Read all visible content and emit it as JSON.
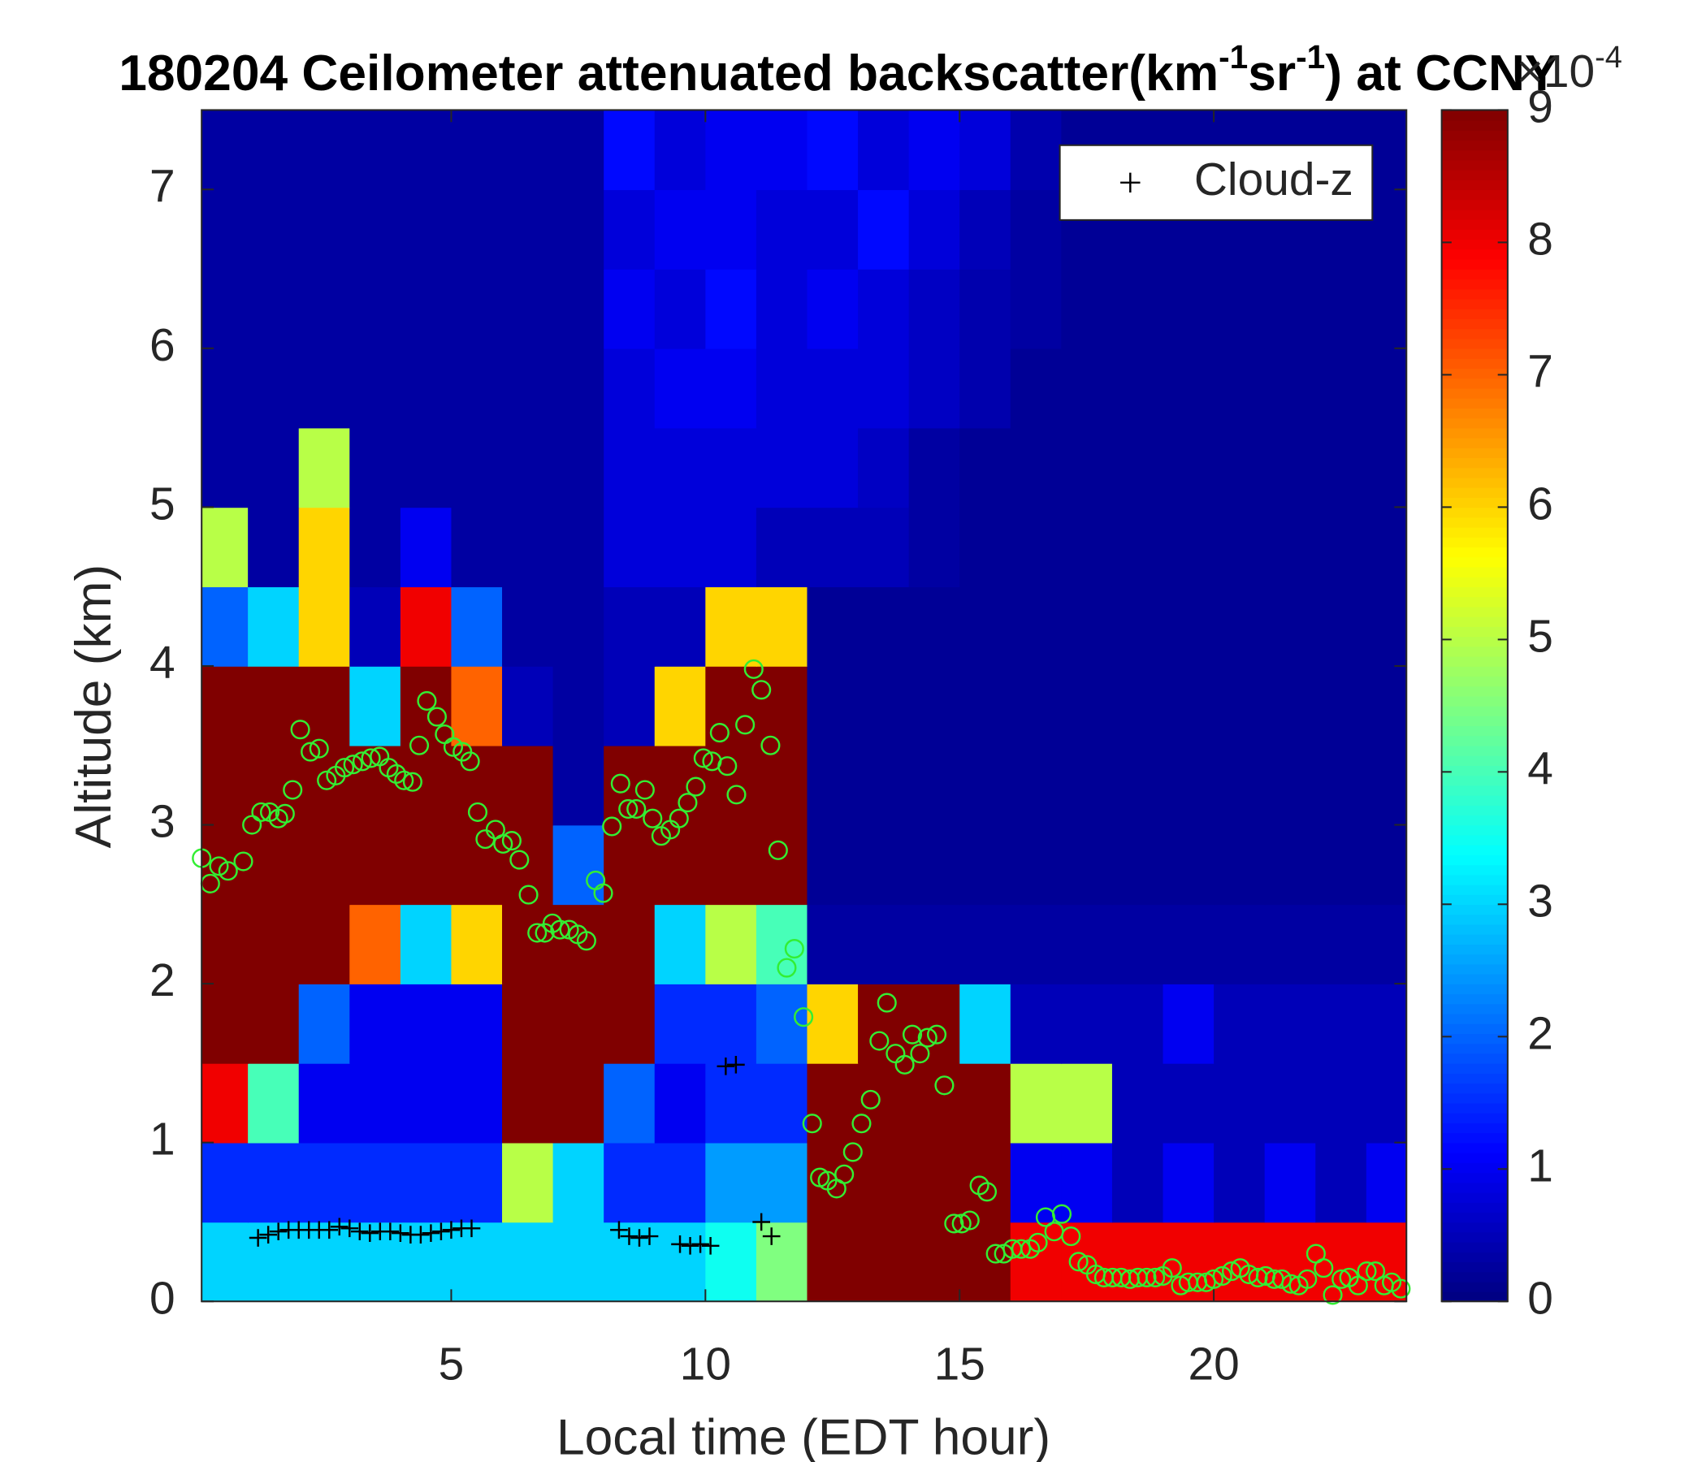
{
  "chart_data": {
    "type": "heatmap",
    "title_parts": [
      "180204 Ceilometer attenuated backscatter(km",
      "-1",
      "sr",
      "-1",
      ") at CCNY"
    ],
    "xlabel": "Local time (EDT hour)",
    "ylabel": "Altitude (km)",
    "xlim": [
      0.09,
      23.79
    ],
    "ylim": [
      0,
      7.5
    ],
    "xticks": [
      5,
      10,
      15,
      20
    ],
    "yticks": [
      0,
      1,
      2,
      3,
      4,
      5,
      6,
      7
    ],
    "colormap": "jet",
    "clim": [
      0,
      9
    ],
    "cticks": [
      0,
      1,
      2,
      3,
      4,
      5,
      6,
      7,
      8,
      9
    ],
    "colorbar_multiplier": "×10",
    "colorbar_exponent": "-4",
    "legend": "upper right",
    "x": [
      0.5,
      1.5,
      2.5,
      3.5,
      4.5,
      5.5,
      6.5,
      7.5,
      8.5,
      9.5,
      10.5,
      11.5,
      12.5,
      13.5,
      14.5,
      15.5,
      16.5,
      17.5,
      18.5,
      19.5,
      20.5,
      21.5,
      22.5,
      23.5
    ],
    "y": [
      0.25,
      0.75,
      1.25,
      1.75,
      2.25,
      2.75,
      3.25,
      3.75,
      4.25,
      4.75,
      5.25,
      5.75,
      6.25,
      6.75,
      7.25
    ],
    "z": [
      [
        3,
        3,
        3,
        3,
        3,
        3,
        3,
        3,
        3,
        3,
        3.5,
        4.5,
        9,
        9,
        9,
        9,
        8,
        8,
        8,
        8,
        8,
        8,
        8,
        8
      ],
      [
        1.5,
        1.5,
        1.5,
        1.5,
        1.5,
        1.5,
        5,
        3,
        1.5,
        1.5,
        2.5,
        2.5,
        9,
        9,
        9,
        9,
        1,
        1,
        0.5,
        1,
        0.5,
        1,
        0.5,
        1
      ],
      [
        8,
        4,
        1,
        1,
        1,
        1,
        9,
        9,
        2,
        1,
        1.5,
        1.5,
        9,
        9,
        9,
        9,
        5,
        5,
        0.5,
        0.5,
        0.5,
        0.5,
        0.5,
        0.5
      ],
      [
        9,
        9,
        2,
        1,
        1,
        1,
        9,
        9,
        9,
        1.5,
        1.5,
        2,
        6,
        9,
        9,
        3,
        0.5,
        0.5,
        0.5,
        1,
        0.5,
        0.5,
        0.5,
        0.5
      ],
      [
        9,
        9,
        9,
        7,
        3,
        6,
        9,
        9,
        9,
        3,
        5,
        4,
        0.3,
        0.3,
        0.3,
        0.3,
        0.3,
        0.3,
        0.3,
        0.3,
        0.3,
        0.3,
        0.3,
        0.3
      ],
      [
        9,
        9,
        9,
        9,
        9,
        9,
        9,
        2,
        9,
        9,
        9,
        9,
        0.2,
        0.2,
        0.2,
        0.2,
        0.2,
        0.2,
        0.2,
        0.2,
        0.2,
        0.2,
        0.2,
        0.2
      ],
      [
        9,
        9,
        9,
        9,
        9,
        9,
        9,
        0.3,
        9,
        9,
        9,
        9,
        0.2,
        0.2,
        0.2,
        0.2,
        0.2,
        0.2,
        0.2,
        0.2,
        0.2,
        0.2,
        0.2,
        0.2
      ],
      [
        9,
        9,
        9,
        3,
        9,
        7,
        0.5,
        0.3,
        0.5,
        6,
        9,
        9,
        0.2,
        0.2,
        0.2,
        0.2,
        0.2,
        0.2,
        0.2,
        0.2,
        0.2,
        0.2,
        0.2,
        0.2
      ],
      [
        2,
        3,
        6,
        0.5,
        8,
        2,
        0.3,
        0.3,
        0.5,
        0.5,
        6,
        6,
        0.2,
        0.2,
        0.2,
        0.2,
        0.2,
        0.2,
        0.2,
        0.2,
        0.2,
        0.2,
        0.2,
        0.2
      ],
      [
        5,
        0.3,
        6,
        0.3,
        1,
        0.3,
        0.3,
        0.3,
        0.8,
        0.8,
        0.8,
        0.5,
        0.5,
        0.5,
        0.3,
        0.2,
        0.2,
        0.2,
        0.2,
        0.2,
        0.2,
        0.2,
        0.2,
        0.2
      ],
      [
        0.3,
        0.3,
        5,
        0.3,
        0.3,
        0.3,
        0.3,
        0.3,
        0.8,
        0.8,
        0.8,
        0.8,
        0.8,
        0.6,
        0.3,
        0.2,
        0.2,
        0.2,
        0.2,
        0.2,
        0.2,
        0.2,
        0.2,
        0.2
      ],
      [
        0.3,
        0.3,
        0.3,
        0.3,
        0.3,
        0.3,
        0.3,
        0.3,
        0.8,
        1,
        1,
        0.8,
        0.8,
        0.8,
        0.6,
        0.4,
        0.2,
        0.2,
        0.2,
        0.2,
        0.2,
        0.2,
        0.2,
        0.2
      ],
      [
        0.3,
        0.3,
        0.3,
        0.3,
        0.3,
        0.3,
        0.3,
        0.3,
        1,
        0.8,
        1.2,
        0.8,
        1,
        0.8,
        0.6,
        0.4,
        0.3,
        0.2,
        0.2,
        0.2,
        0.2,
        0.2,
        0.2,
        0.2
      ],
      [
        0.3,
        0.3,
        0.3,
        0.3,
        0.3,
        0.3,
        0.3,
        0.3,
        0.8,
        1,
        1,
        0.8,
        0.8,
        1.2,
        0.8,
        0.5,
        0.3,
        0.2,
        0.2,
        0.2,
        0.2,
        0.2,
        0.2,
        0.2
      ],
      [
        0.3,
        0.3,
        0.3,
        0.3,
        0.3,
        0.3,
        0.3,
        0.3,
        1.2,
        0.8,
        1,
        1,
        1.2,
        0.8,
        1,
        0.8,
        0.4,
        0.2,
        0.2,
        0.2,
        0.2,
        0.2,
        0.2,
        0.2
      ]
    ],
    "overlays": [
      {
        "type": "scatter",
        "marker": "circle",
        "color": "#33ee33",
        "x": [
          0.09,
          0.26,
          0.43,
          0.61,
          0.91,
          1.08,
          1.26,
          1.43,
          1.6,
          1.73,
          1.88,
          2.03,
          2.23,
          2.4,
          2.55,
          2.73,
          2.9,
          3.07,
          3.25,
          3.42,
          3.59,
          3.77,
          3.92,
          4.07,
          4.24,
          4.37,
          4.52,
          4.72,
          4.87,
          5.04,
          5.22,
          5.37,
          5.52,
          5.67,
          5.87,
          6.02,
          6.19,
          6.34,
          6.52,
          6.69,
          6.84,
          6.99,
          7.14,
          7.32,
          7.49,
          7.66,
          7.84,
          7.99,
          8.16,
          8.33,
          8.48,
          8.64,
          8.81,
          8.96,
          9.13,
          9.31,
          9.48,
          9.65,
          9.81,
          9.96,
          10.13,
          10.28,
          10.43,
          10.61,
          10.78,
          10.95,
          11.1,
          11.28,
          11.43,
          11.6,
          11.75,
          11.93,
          12.1,
          12.25,
          12.4,
          12.58,
          12.73,
          12.9,
          13.07,
          13.25,
          13.42,
          13.57,
          13.74,
          13.92,
          14.07,
          14.22,
          14.37,
          14.55,
          14.7,
          14.89,
          15.04,
          15.2,
          15.39,
          15.54,
          15.71,
          15.87,
          16.04,
          16.21,
          16.39,
          16.54,
          16.69,
          16.86,
          17.01,
          17.19,
          17.34,
          17.51,
          17.68,
          17.84,
          18.01,
          18.18,
          18.35,
          18.51,
          18.68,
          18.85,
          19.0,
          19.18,
          19.35,
          19.5,
          19.68,
          19.85,
          20.0,
          20.17,
          20.35,
          20.52,
          20.69,
          20.87,
          21.02,
          21.19,
          21.34,
          21.52,
          21.67,
          21.84,
          22.01,
          22.16,
          22.34,
          22.51,
          22.66,
          22.84,
          23.01,
          23.18,
          23.35,
          23.5,
          23.68
        ],
        "y": [
          2.79,
          2.63,
          2.74,
          2.71,
          2.77,
          3.0,
          3.08,
          3.08,
          3.04,
          3.07,
          3.22,
          3.6,
          3.46,
          3.48,
          3.28,
          3.31,
          3.36,
          3.38,
          3.4,
          3.42,
          3.43,
          3.36,
          3.32,
          3.28,
          3.27,
          3.5,
          3.78,
          3.68,
          3.57,
          3.49,
          3.46,
          3.4,
          3.08,
          2.91,
          2.97,
          2.88,
          2.9,
          2.78,
          2.56,
          2.32,
          2.32,
          2.38,
          2.34,
          2.34,
          2.31,
          2.27,
          2.65,
          2.57,
          2.99,
          3.26,
          3.1,
          3.1,
          3.22,
          3.04,
          2.93,
          2.97,
          3.04,
          3.14,
          3.24,
          3.42,
          3.4,
          3.58,
          3.37,
          3.19,
          3.63,
          3.98,
          3.85,
          3.5,
          2.84,
          2.1,
          2.22,
          1.79,
          1.12,
          0.78,
          0.76,
          0.71,
          0.8,
          0.94,
          1.12,
          1.27,
          1.64,
          1.88,
          1.56,
          1.49,
          1.68,
          1.56,
          1.66,
          1.68,
          1.36,
          0.49,
          0.49,
          0.51,
          0.73,
          0.69,
          0.3,
          0.3,
          0.33,
          0.33,
          0.33,
          0.37,
          0.53,
          0.44,
          0.55,
          0.41,
          0.25,
          0.23,
          0.17,
          0.15,
          0.15,
          0.15,
          0.14,
          0.15,
          0.15,
          0.15,
          0.16,
          0.21,
          0.1,
          0.12,
          0.12,
          0.12,
          0.14,
          0.16,
          0.19,
          0.21,
          0.17,
          0.15,
          0.16,
          0.14,
          0.14,
          0.11,
          0.1,
          0.14,
          0.3,
          0.21,
          0.04,
          0.14,
          0.15,
          0.1,
          0.19,
          0.19,
          0.1,
          0.12,
          0.08
        ]
      },
      {
        "type": "scatter",
        "marker": "plus",
        "name": "Cloud-z",
        "color": "#000000",
        "x": [
          1.2,
          1.4,
          1.6,
          1.8,
          2.0,
          2.2,
          2.4,
          2.6,
          2.8,
          3.0,
          3.2,
          3.4,
          3.6,
          3.8,
          4.0,
          4.2,
          4.4,
          4.6,
          4.8,
          5.0,
          5.2,
          5.4,
          8.3,
          8.5,
          8.7,
          8.9,
          9.5,
          9.7,
          9.9,
          10.1,
          10.4,
          10.6,
          11.1,
          11.3
        ],
        "y": [
          0.4,
          0.42,
          0.44,
          0.45,
          0.45,
          0.45,
          0.45,
          0.45,
          0.47,
          0.46,
          0.44,
          0.43,
          0.44,
          0.44,
          0.43,
          0.42,
          0.42,
          0.43,
          0.44,
          0.45,
          0.46,
          0.46,
          0.45,
          0.41,
          0.4,
          0.41,
          0.36,
          0.35,
          0.36,
          0.35,
          1.48,
          1.49,
          0.5,
          0.41
        ]
      }
    ]
  }
}
